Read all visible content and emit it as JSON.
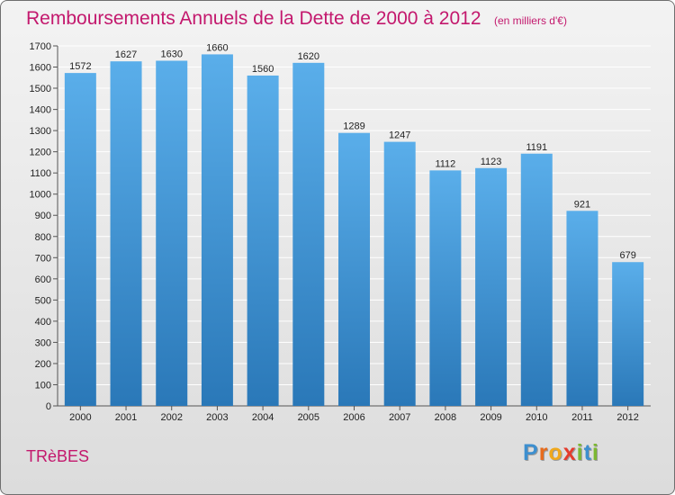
{
  "header": {
    "title": "Remboursements Annuels de la Dette de 2000 à 2012",
    "subtitle": "(en milliers d'€)"
  },
  "footer": {
    "commune": "TRèBES",
    "logo_letters": [
      "P",
      "r",
      "o",
      "x",
      "i",
      "t",
      "i"
    ],
    "logo_colors": [
      "#3d8fcf",
      "#e86b1c",
      "#f0a81c",
      "#e53b2c",
      "#7cb832",
      "#3d8fcf",
      "#7cb832"
    ]
  },
  "colors": {
    "title": "#c3186d",
    "bar_top": "#5aaeea",
    "bar_bottom": "#2a78b8",
    "grid": "#ffffff",
    "text": "#222222"
  },
  "chart_data": {
    "type": "bar",
    "title": "Remboursements Annuels de la Dette de 2000 à 2012",
    "subtitle": "(en milliers d'€)",
    "categories": [
      "2000",
      "2001",
      "2002",
      "2003",
      "2004",
      "2005",
      "2006",
      "2007",
      "2008",
      "2009",
      "2010",
      "2011",
      "2012"
    ],
    "values": [
      1572,
      1627,
      1630,
      1660,
      1560,
      1620,
      1289,
      1247,
      1112,
      1123,
      1191,
      921,
      679
    ],
    "ylim": [
      0,
      1700
    ],
    "yticks": [
      0,
      100,
      200,
      300,
      400,
      500,
      600,
      700,
      800,
      900,
      1000,
      1100,
      1200,
      1300,
      1400,
      1500,
      1600,
      1700
    ],
    "grid": true,
    "data_labels": true
  }
}
